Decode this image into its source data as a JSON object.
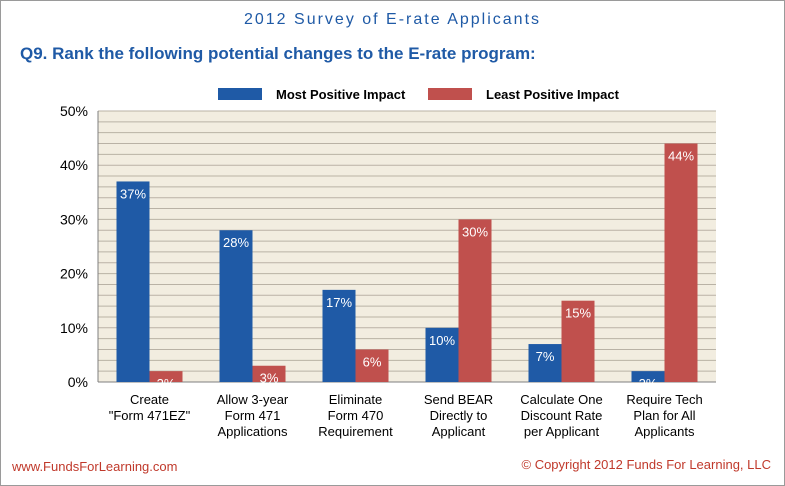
{
  "header": {
    "survey_title": "2012 Survey of E-rate Applicants",
    "question": "Q9. Rank the following potential changes to the E-rate program:"
  },
  "footer": {
    "website": "www.FundsForLearning.com",
    "copyright": "© Copyright 2012  Funds For Learning, LLC"
  },
  "colors": {
    "most": "#1f5aa6",
    "least": "#c0504d",
    "plot_bg": "#f2ede0",
    "grid": "#b9b2a5"
  },
  "chart_data": {
    "type": "bar",
    "categories": [
      [
        "Create",
        "\"Form 471EZ\""
      ],
      [
        "Allow 3-year",
        "Form 471",
        "Applications"
      ],
      [
        "Eliminate",
        "Form 470",
        "Requirement"
      ],
      [
        "Send BEAR",
        "Directly to",
        "Applicant"
      ],
      [
        "Calculate One",
        "Discount Rate",
        "per Applicant"
      ],
      [
        "Require Tech",
        "Plan for All",
        "Applicants"
      ]
    ],
    "series": [
      {
        "name": "Most Positive Impact",
        "values": [
          37,
          28,
          17,
          10,
          7,
          2
        ],
        "labels": [
          "37%",
          "28%",
          "17%",
          "10%",
          "7%",
          "2%"
        ]
      },
      {
        "name": "Least Positive Impact",
        "values": [
          2,
          3,
          6,
          30,
          15,
          44
        ],
        "labels": [
          "2%",
          "3%",
          "6%",
          "30%",
          "15%",
          "44%"
        ]
      }
    ],
    "ylim": [
      0,
      50
    ],
    "yticks": [
      "0%",
      "10%",
      "20%",
      "30%",
      "40%",
      "50%"
    ],
    "grid": true,
    "legend_position": "top"
  }
}
